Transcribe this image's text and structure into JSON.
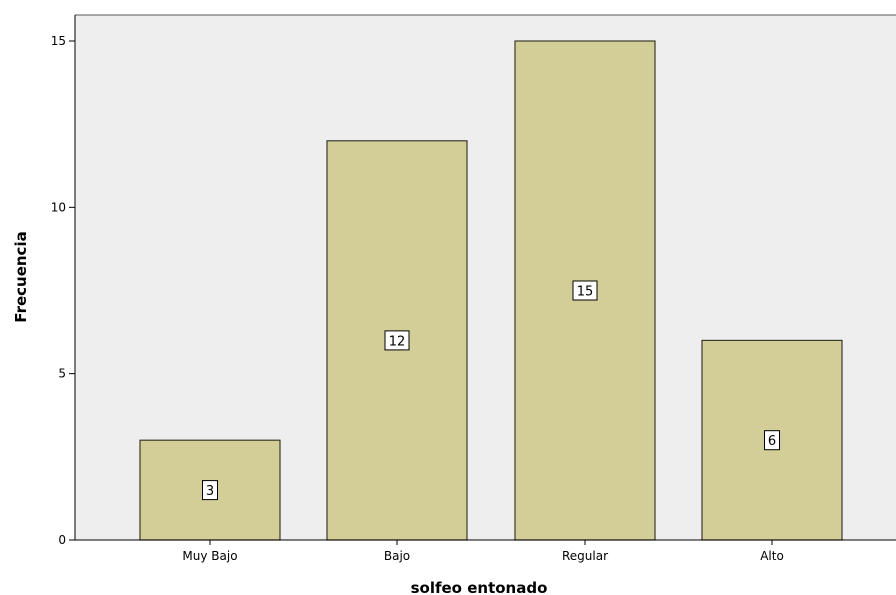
{
  "chart_data": {
    "type": "bar",
    "categories": [
      "Muy Bajo",
      "Bajo",
      "Regular",
      "Alto"
    ],
    "values": [
      3,
      12,
      15,
      6
    ],
    "data_labels": [
      "3",
      "12",
      "15",
      "6"
    ],
    "title": "",
    "xlabel": "solfeo entonado",
    "ylabel": "Frecuencia",
    "ylim": [
      0,
      15
    ],
    "yticks": [
      0,
      5,
      10,
      15
    ],
    "grid": false,
    "legend": "none",
    "colors": {
      "plot_background": "#eeeeee",
      "bar_fill": "#d3cd97",
      "bar_stroke": "#3a3a2a",
      "axis": "#000000"
    }
  }
}
